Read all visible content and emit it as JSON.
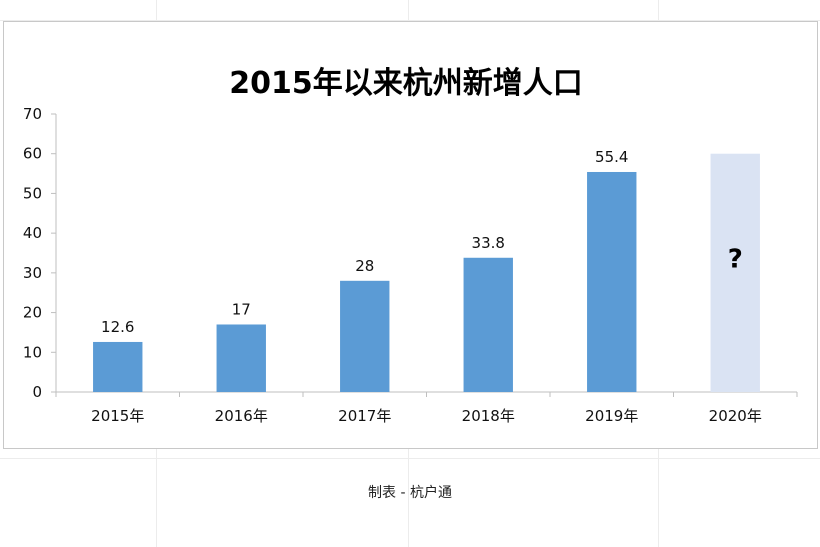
{
  "chart_data": {
    "type": "bar",
    "title": "2015年以来杭州新增人口",
    "categories": [
      "2015年",
      "2016年",
      "2017年",
      "2018年",
      "2019年",
      "2020年"
    ],
    "values": [
      12.6,
      17,
      28,
      33.8,
      55.4,
      60
    ],
    "data_labels": [
      "12.6",
      "17",
      "28",
      "33.8",
      "55.4",
      "?"
    ],
    "highlight_last": true,
    "ylim": [
      0,
      70
    ],
    "yticks": [
      0,
      10,
      20,
      30,
      40,
      50,
      60,
      70
    ],
    "grid": false,
    "legend": "none",
    "colors": {
      "bar": "#5b9bd5",
      "bar_unknown": "#dae3f3",
      "axis": "#bfbfbf"
    }
  },
  "footer": {
    "credit": "制表 - 杭户通"
  }
}
